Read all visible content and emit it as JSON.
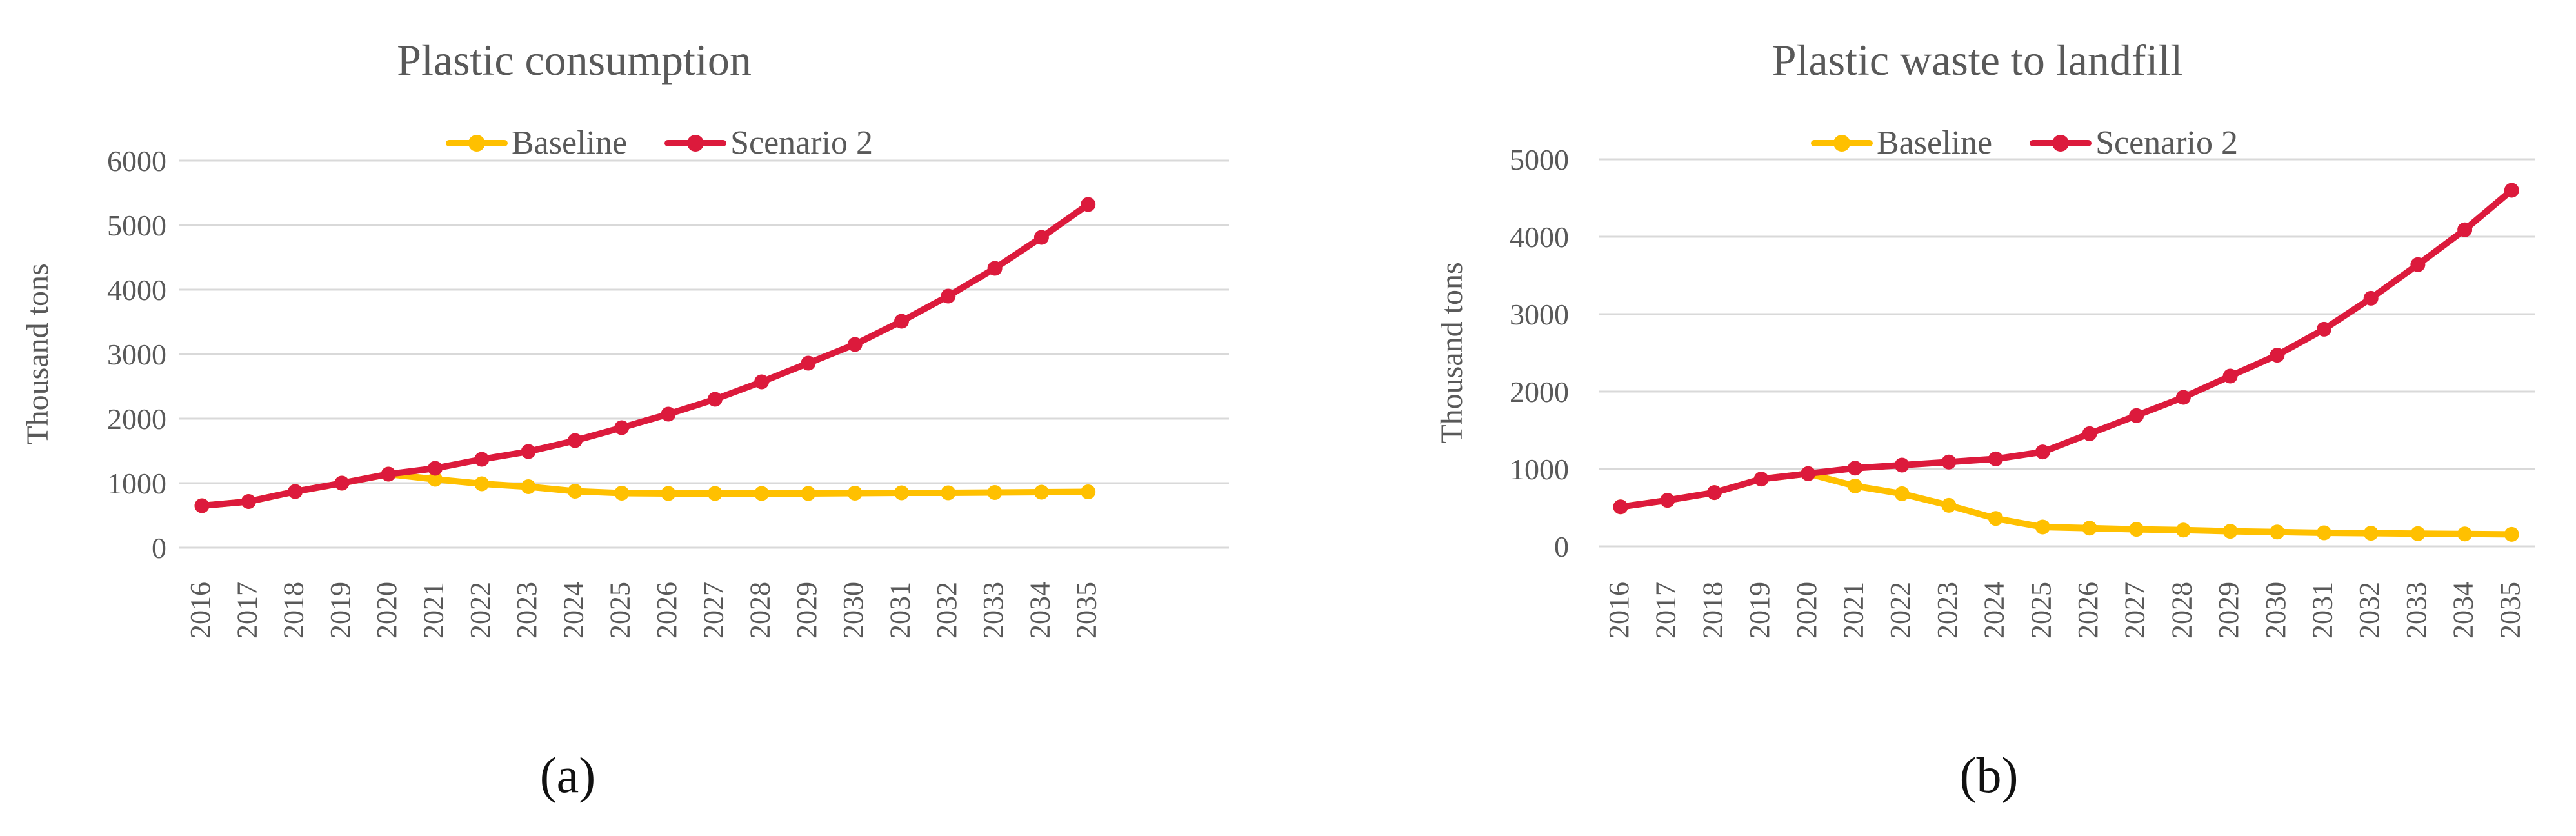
{
  "figure": {
    "panel_a_label": "(a)",
    "panel_b_label": "(b)"
  },
  "colors": {
    "baseline": "#FFC000",
    "scenario2": "#DC1A3C",
    "gridline": "#D9D9D9",
    "axis_text": "#595959",
    "title_text": "#595959",
    "panel_label_text": "#111111",
    "background": "#FFFFFF"
  },
  "chart_data": [
    {
      "id": "a",
      "type": "line",
      "title": "Plastic consumption",
      "ylabel": "Thousand tons",
      "xlabel": "",
      "legend_position": "top",
      "grid": true,
      "ylim": [
        0,
        6000
      ],
      "ytick_step": 1000,
      "ytick_labels": [
        "0",
        "1000",
        "2000",
        "3000",
        "4000",
        "5000",
        "6000"
      ],
      "x": [
        2016,
        2017,
        2018,
        2019,
        2020,
        2021,
        2022,
        2023,
        2024,
        2025,
        2026,
        2027,
        2028,
        2029,
        2030,
        2031,
        2032,
        2033,
        2034,
        2035
      ],
      "series": [
        {
          "name": "Baseline",
          "color": "#FFC000",
          "values": [
            650,
            715,
            870,
            1000,
            1140,
            1060,
            990,
            945,
            875,
            845,
            840,
            840,
            840,
            840,
            845,
            850,
            850,
            855,
            860,
            865
          ]
        },
        {
          "name": "Scenario 2",
          "color": "#DC1A3C",
          "values": [
            650,
            715,
            870,
            1000,
            1140,
            1230,
            1370,
            1490,
            1660,
            1860,
            2070,
            2300,
            2570,
            2860,
            3150,
            3510,
            3900,
            4330,
            4810,
            5320
          ]
        }
      ]
    },
    {
      "id": "b",
      "type": "line",
      "title": "Plastic waste to landfill",
      "ylabel": "Thousand tons",
      "xlabel": "",
      "legend_position": "top",
      "grid": true,
      "ylim": [
        0,
        5000
      ],
      "ytick_step": 1000,
      "ytick_labels": [
        "0",
        "1000",
        "2000",
        "3000",
        "4000",
        "5000"
      ],
      "x": [
        2016,
        2017,
        2018,
        2019,
        2020,
        2021,
        2022,
        2023,
        2024,
        2025,
        2026,
        2027,
        2028,
        2029,
        2030,
        2031,
        2032,
        2033,
        2034,
        2035
      ],
      "series": [
        {
          "name": "Baseline",
          "color": "#FFC000",
          "values": [
            510,
            595,
            695,
            870,
            940,
            780,
            680,
            530,
            360,
            250,
            235,
            220,
            210,
            195,
            185,
            175,
            170,
            165,
            160,
            155
          ]
        },
        {
          "name": "Scenario 2",
          "color": "#DC1A3C",
          "values": [
            510,
            595,
            695,
            870,
            940,
            1010,
            1050,
            1090,
            1130,
            1220,
            1455,
            1690,
            1925,
            2200,
            2470,
            2805,
            3205,
            3640,
            4090,
            4600
          ]
        }
      ]
    }
  ]
}
